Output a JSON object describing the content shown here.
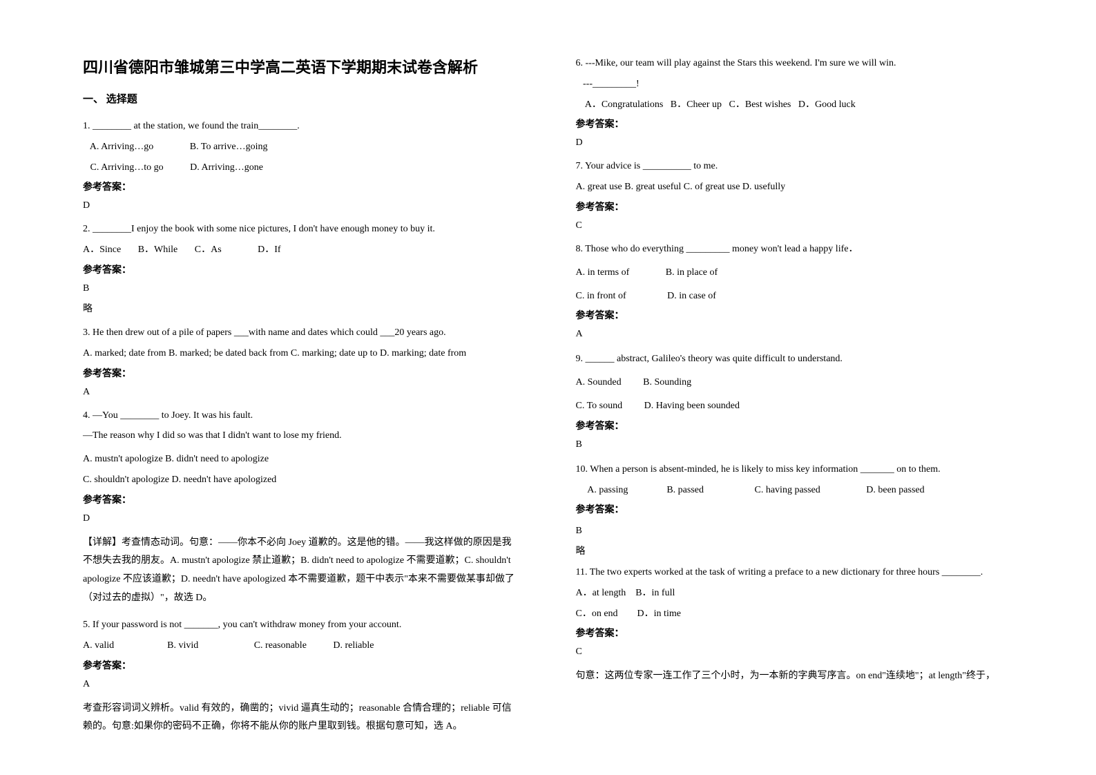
{
  "title": "四川省德阳市雏城第三中学高二英语下学期期末试卷含解析",
  "section": "一、 选择题",
  "left": {
    "q1": "1. ________ at the station, we found the train________.",
    "q1_opts1": "   A. Arriving…go               B. To arrive…going",
    "q1_opts2": "   C. Arriving…to go           D. Arriving…gone",
    "ans_label": "参考答案：",
    "q1_ans": "D",
    "q2": "2. ________I enjoy the book with some nice pictures, I don't have enough money to buy it.",
    "q2_opts": "A．Since       B．While       C．As               D．If",
    "q2_ans": "B",
    "q2_note": "略",
    "q3a": "3. He then drew out of a pile of papers ___with name and dates which could ___20 years ago.",
    "q3b": "A. marked; date from B. marked; be dated back from C. marking; date up to D. marking; date from",
    "q3_ans": "A",
    "q4a": "4. —You ________ to Joey. It was his fault.",
    "q4b": "—The reason why I did so was that I didn't want to lose my friend.",
    "q4_opts1": "A. mustn't apologize    B. didn't need to apologize",
    "q4_opts2": "C. shouldn't apologize    D. needn't have apologized",
    "q4_ans": "D",
    "q4_expl": "【详解】考查情态动词。句意：——你本不必向 Joey 道歉的。这是他的错。——我这样做的原因是我不想失去我的朋友。A. mustn't apologize 禁止道歉；B. didn't need to apologize 不需要道歉；C. shouldn't apologize 不应该道歉；D. needn't have apologized 本不需要道歉，题干中表示\"本来不需要做某事却做了（对过去的虚拟）\"，故选 D。",
    "q5": "5. If your password is not _______, you can't withdraw money from your account.",
    "q5_opts": "A. valid                      B. vivid                       C. reasonable           D. reliable",
    "q5_ans": "A",
    "q5_expl": "考查形容词词义辨析。valid 有效的，确凿的；vivid 逼真生动的；reasonable 合情合理的；reliable 可信赖的。句意:如果你的密码不正确，你将不能从你的账户里取到钱。根据句意可知，选 A。"
  },
  "right": {
    "q6a": "6. ---Mike, our team will play against the Stars this weekend. I'm sure we will win.",
    "q6b": "   ---_________!",
    "q6_opts": "    A．Congratulations   B．Cheer up   C．Best wishes   D．Good luck",
    "q6_ans": "D",
    "q7": "7. Your advice is __________ to me.",
    "q7_opts": "A. great use   B. great useful  C. of great use  D. usefully",
    "q7_ans": "C",
    "q8": "8. Those who do everything _________ money won't lead a happy life．",
    "q8_opts1": "A. in terms of               B. in place of",
    "q8_opts2": "C. in front of                 D. in case of",
    "q8_ans": "A",
    "q9": "9. ______ abstract, Galileo's theory was quite difficult to understand.",
    "q9_opts1": "A. Sounded         B. Sounding",
    "q9_opts2": "C. To sound         D. Having been sounded",
    "q9_ans": "B",
    "q10": "10. When a person is absent-minded, he is likely to miss key information _______ on to them.",
    "q10_opts": "     A. passing                B. passed                     C. having passed                   D. been passed",
    "q10_ans": "B",
    "q10_note": "略",
    "q11": "11. The two experts worked at the task of writing a preface to a new dictionary for three hours ________.",
    "q11_opts1": "A．at length    B．in full",
    "q11_opts2": "C．on end        D．in time",
    "q11_ans": "C",
    "q11_expl": "句意：这两位专家一连工作了三个小时，为一本新的字典写序言。on end\"连续地\"；at length\"终于，"
  }
}
